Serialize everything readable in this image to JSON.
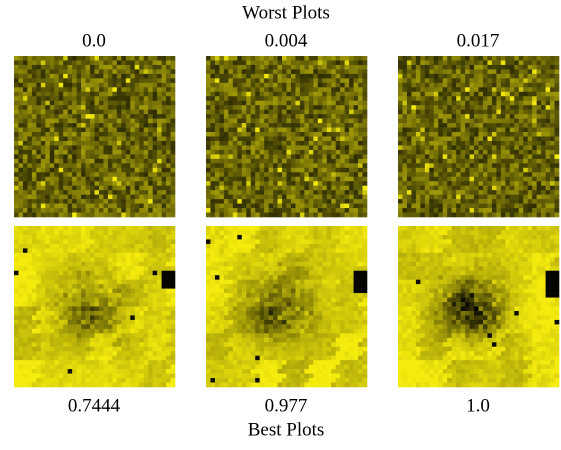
{
  "header": {
    "title": "Worst Plots"
  },
  "top_row": {
    "labels": [
      "0.0",
      "0.004",
      "0.017"
    ]
  },
  "bottom_row": {
    "labels": [
      "0.7444",
      "0.977",
      "1.0"
    ]
  },
  "footer": {
    "title": "Best Plots"
  }
}
